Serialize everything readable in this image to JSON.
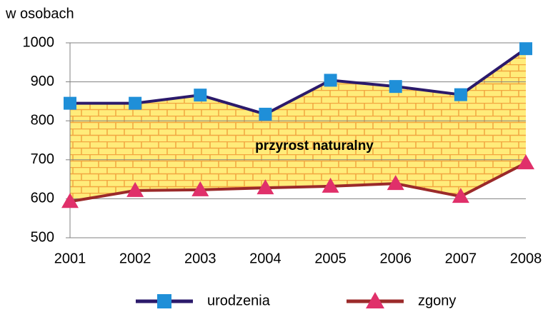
{
  "chart_data": {
    "type": "line",
    "y_label": "w osobach",
    "annotation": "przyrost naturalny",
    "categories": [
      "2001",
      "2002",
      "2003",
      "2004",
      "2005",
      "2006",
      "2007",
      "2008"
    ],
    "series": [
      {
        "name": "urodzenia",
        "color": "#2b1a6b",
        "marker": "square",
        "marker_color": "#1f8fd8",
        "values": [
          845,
          845,
          866,
          817,
          904,
          888,
          867,
          985
        ]
      },
      {
        "name": "zgony",
        "color": "#9b2a2a",
        "marker": "triangle",
        "marker_color": "#e0306a",
        "values": [
          593,
          621,
          623,
          628,
          632,
          639,
          606,
          692
        ]
      }
    ],
    "ylim": [
      500,
      1000
    ],
    "yticks": [
      500,
      600,
      700,
      800,
      900,
      1000
    ],
    "grid": true
  }
}
